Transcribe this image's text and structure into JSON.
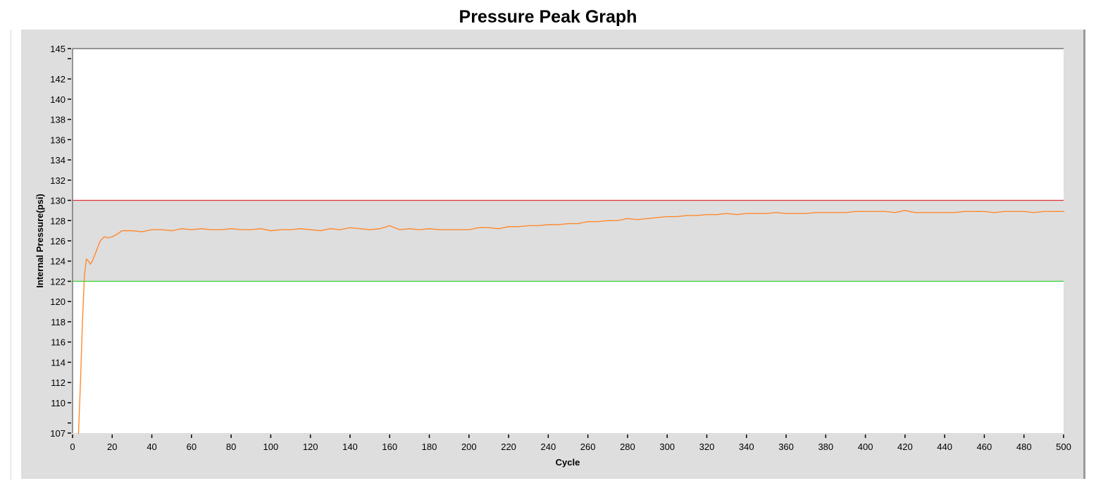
{
  "chart_data": {
    "type": "line",
    "title": "Pressure Peak Graph",
    "xlabel": "Cycle",
    "ylabel": "Internal Pressure(psi)",
    "xlim": [
      0,
      500
    ],
    "ylim": [
      107,
      145
    ],
    "x_ticks": [
      "0",
      "20",
      "40",
      "60",
      "80",
      "100",
      "120",
      "140",
      "160",
      "180",
      "200",
      "220",
      "240",
      "260",
      "280",
      "300",
      "320",
      "340",
      "360",
      "380",
      "400",
      "420",
      "440",
      "460",
      "480",
      "500"
    ],
    "y_ticks": [
      "107",
      "110",
      "112",
      "114",
      "116",
      "118",
      "120",
      "122",
      "124",
      "126",
      "128",
      "130",
      "132",
      "134",
      "136",
      "138",
      "140",
      "142",
      "145"
    ],
    "grid": false,
    "limits": {
      "upper": 130,
      "lower": 122,
      "upper_color": "#e03030",
      "lower_color": "#30d030",
      "band_color": "#dedede"
    },
    "series_color": "#ff8a30",
    "series": [
      {
        "x": [
          3,
          4,
          5,
          6,
          7,
          8,
          9,
          10,
          12,
          14,
          16,
          18,
          20,
          22,
          25,
          30,
          35,
          40,
          45,
          50,
          55,
          60,
          65,
          70,
          75,
          80,
          85,
          90,
          95,
          100,
          105,
          110,
          115,
          120,
          125,
          130,
          135,
          140,
          145,
          150,
          155,
          160,
          165,
          170,
          175,
          180,
          185,
          190,
          195,
          200,
          205,
          210,
          215,
          220,
          225,
          230,
          235,
          240,
          245,
          250,
          255,
          260,
          265,
          270,
          275,
          280,
          285,
          290,
          295,
          300,
          305,
          310,
          315,
          320,
          325,
          330,
          335,
          340,
          345,
          350,
          355,
          360,
          365,
          370,
          375,
          380,
          385,
          390,
          395,
          400,
          405,
          410,
          415,
          420,
          425,
          430,
          435,
          440,
          445,
          450,
          455,
          460,
          465,
          470,
          475,
          480,
          485,
          490,
          495,
          500
        ],
        "y": [
          107,
          112,
          118,
          122.6,
          124.2,
          124,
          123.7,
          124,
          125,
          126,
          126.4,
          126.3,
          126.4,
          126.6,
          127,
          127,
          126.9,
          127.1,
          127.1,
          127,
          127.2,
          127.1,
          127.2,
          127.1,
          127.1,
          127.2,
          127.1,
          127.1,
          127.2,
          127,
          127.1,
          127.1,
          127.2,
          127.1,
          127,
          127.2,
          127.1,
          127.3,
          127.2,
          127.1,
          127.2,
          127.5,
          127.1,
          127.2,
          127.1,
          127.2,
          127.1,
          127.1,
          127.1,
          127.1,
          127.3,
          127.3,
          127.2,
          127.4,
          127.4,
          127.5,
          127.5,
          127.6,
          127.6,
          127.7,
          127.7,
          127.9,
          127.9,
          128,
          128,
          128.2,
          128.1,
          128.2,
          128.3,
          128.4,
          128.4,
          128.5,
          128.5,
          128.6,
          128.6,
          128.7,
          128.6,
          128.7,
          128.7,
          128.7,
          128.8,
          128.7,
          128.7,
          128.7,
          128.8,
          128.8,
          128.8,
          128.8,
          128.9,
          128.9,
          128.9,
          128.9,
          128.8,
          129,
          128.8,
          128.8,
          128.8,
          128.8,
          128.8,
          128.9,
          128.9,
          128.9,
          128.8,
          128.9,
          128.9,
          128.9,
          128.8,
          128.9,
          128.9,
          128.9
        ]
      }
    ]
  }
}
